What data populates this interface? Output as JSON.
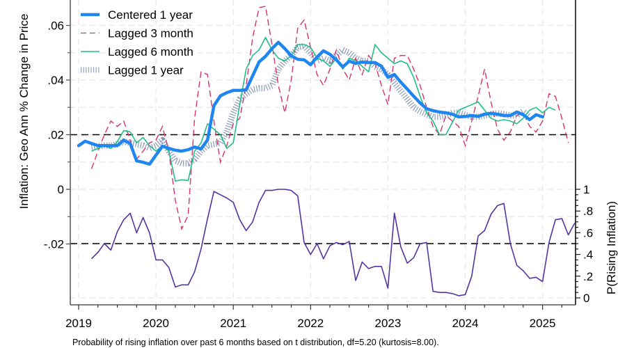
{
  "chart_data": {
    "type": "line",
    "title": "",
    "caption": "Probability of rising inflation over past 6 months based on t distribution, df=5.20 (kurtosis=8.00).",
    "xlabel": "",
    "ylabel": "Inflation: Geo Ann % Change in Price",
    "ylabel_right": "P(Rising Inflation)",
    "x_start": "2019-01",
    "x_step": "monthly",
    "xlim": [
      2018.9,
      2025.43
    ],
    "ylim": [
      -0.0423,
      0.0695
    ],
    "ylim_right": [
      0,
      1
    ],
    "right_axis_mapping": {
      "p0_at_left": -0.0398,
      "p1_at_left": 0.0
    },
    "x_ticks": [
      2019,
      2020,
      2021,
      2022,
      2023,
      2024,
      2025
    ],
    "x_tick_labels": [
      "2019",
      "2020",
      "2021",
      "2022",
      "2023",
      "2024",
      "2025"
    ],
    "y_ticks": [
      0.06,
      0.04,
      0.02,
      0,
      -0.02
    ],
    "y_tick_labels": [
      ".06",
      ".04",
      ".02",
      "0",
      "-.02"
    ],
    "y_minor_ticks": [
      0.05,
      0.03,
      0.01,
      -0.01
    ],
    "y_ticks_right": [
      1,
      0.8,
      0.6,
      0.4,
      0.2,
      0
    ],
    "y_tick_labels_right": [
      "1",
      ".8",
      ".6",
      ".4",
      ".2",
      "0"
    ],
    "reference_lines": [
      {
        "axis": "left",
        "value": 0.02,
        "style": "dashed"
      },
      {
        "axis": "right",
        "value": 0.5,
        "style": "dashed"
      }
    ],
    "grid": true,
    "legend": {
      "position": "top-left",
      "entries": [
        "Centered 1 year",
        "Lagged 3 month",
        "Lagged 6 month",
        "Lagged 1 year"
      ]
    },
    "series": [
      {
        "name": "Centered 1 year",
        "axis": "left",
        "color": "#1f86f0",
        "style": "thick",
        "start_index": 0,
        "values": [
          0.016,
          0.0176,
          0.0168,
          0.016,
          0.016,
          0.016,
          0.016,
          0.018,
          0.0168,
          0.0104,
          0.0099,
          0.0092,
          0.0125,
          0.0158,
          0.015,
          0.0143,
          0.014,
          0.0145,
          0.0155,
          0.0148,
          0.0181,
          0.0306,
          0.0342,
          0.0354,
          0.0362,
          0.0362,
          0.0364,
          0.0415,
          0.0466,
          0.0487,
          0.0515,
          0.0538,
          0.0515,
          0.0489,
          0.0476,
          0.0474,
          0.0456,
          0.0484,
          0.0507,
          0.0494,
          0.0474,
          0.0448,
          0.0469,
          0.0461,
          0.0466,
          0.0464,
          0.0464,
          0.0451,
          0.041,
          0.042,
          0.0392,
          0.0367,
          0.0341,
          0.0316,
          0.0295,
          0.0288,
          0.0283,
          0.028,
          0.0275,
          0.0265,
          0.0267,
          0.027,
          0.0267,
          0.0275,
          0.0278,
          0.0275,
          0.027,
          0.027,
          0.0283,
          0.0273,
          0.0255,
          0.0273,
          0.0265
        ]
      },
      {
        "name": "Lagged 3 month",
        "axis": "left",
        "color": "#d6336c",
        "style": "dashed",
        "start_index": 2,
        "values": [
          0.0075,
          0.014,
          0.02,
          0.025,
          0.023,
          0.025,
          0.018,
          0.011,
          0.014,
          0.017,
          0.018,
          0.023,
          0.014,
          -0.004,
          -0.0145,
          -0.0095,
          0.026,
          0.043,
          0.042,
          0.025,
          0.01,
          0.016,
          0.024,
          0.026,
          0.038,
          0.0555,
          0.0665,
          0.067,
          0.053,
          0.038,
          0.028,
          0.04,
          0.059,
          0.062,
          0.052,
          0.042,
          0.038,
          0.044,
          0.051,
          0.044,
          0.04,
          0.048,
          0.042,
          0.049,
          0.046,
          0.038,
          0.031,
          0.048,
          0.049,
          0.049,
          0.044,
          0.038,
          0.03,
          0.023,
          0.02,
          0.027,
          0.025,
          0.023,
          0.016,
          0.025,
          0.034,
          0.044,
          0.032,
          0.022,
          0.018,
          0.021,
          0.027,
          0.028,
          0.023,
          0.021,
          0.025,
          0.035,
          0.034,
          0.026,
          0.017
        ]
      },
      {
        "name": "Lagged 6 month",
        "axis": "left",
        "color": "#1fbf8a",
        "style": "solid",
        "start_index": 2,
        "values": [
          0.014,
          0.015,
          0.016,
          0.015,
          0.0175,
          0.0215,
          0.021,
          0.017,
          0.019,
          0.016,
          0.014,
          0.016,
          0.014,
          0.003,
          0.0035,
          0.0032,
          0.014,
          0.017,
          0.024,
          0.022,
          0.02,
          0.015,
          0.017,
          0.031,
          0.044,
          0.049,
          0.051,
          0.0556,
          0.051,
          0.048,
          0.047,
          0.049,
          0.053,
          0.053,
          0.052,
          0.048,
          0.047,
          0.045,
          0.048,
          0.044,
          0.048,
          0.047,
          0.045,
          0.043,
          0.053,
          0.05,
          0.048,
          0.046,
          0.047,
          0.046,
          0.041,
          0.034,
          0.028,
          0.025,
          0.02,
          0.02,
          0.0245,
          0.029,
          0.03,
          0.031,
          0.032,
          0.029,
          0.026,
          0.025,
          0.0255,
          0.025,
          0.024,
          0.026,
          0.029,
          0.03,
          0.028,
          0.03,
          0.029
        ]
      },
      {
        "name": "Lagged 1 year",
        "axis": "left",
        "color": "#7788aa",
        "style": "hatched",
        "start_index": 2,
        "values": [
          0.0155,
          0.0158,
          0.016,
          0.016,
          0.0165,
          0.0175,
          0.017,
          0.0165,
          0.016,
          0.015,
          0.016,
          0.018,
          0.014,
          0.0105,
          0.0095,
          0.0095,
          0.011,
          0.014,
          0.016,
          0.0165,
          0.017,
          0.021,
          0.028,
          0.033,
          0.035,
          0.0365,
          0.037,
          0.037,
          0.038,
          0.044,
          0.047,
          0.049,
          0.052,
          0.0525,
          0.05,
          0.047,
          0.048,
          0.047,
          0.049,
          0.051,
          0.05,
          0.048,
          0.047,
          0.047,
          0.045,
          0.044,
          0.042,
          0.039,
          0.036,
          0.033,
          0.03,
          0.0285,
          0.0275,
          0.0265,
          0.0265,
          0.027,
          0.028,
          0.028,
          0.0272,
          0.0265,
          0.0265,
          0.027,
          0.0275,
          0.0278,
          0.0275,
          0.027,
          0.027,
          0.0285,
          0.0265
        ]
      },
      {
        "name": "P(Rising Inflation)",
        "axis": "right",
        "color": "#5533a0",
        "style": "solid",
        "start_index": 2,
        "values": [
          0.36,
          0.42,
          0.5,
          0.44,
          0.61,
          0.72,
          0.78,
          0.6,
          0.74,
          0.6,
          0.35,
          0.35,
          0.28,
          0.1,
          0.12,
          0.12,
          0.24,
          0.45,
          0.73,
          0.98,
          0.95,
          0.92,
          0.88,
          0.72,
          0.62,
          0.7,
          0.88,
          0.99,
          0.99,
          1.0,
          1.0,
          0.99,
          0.94,
          0.51,
          0.4,
          0.5,
          0.36,
          0.48,
          0.51,
          0.49,
          0.52,
          0.16,
          0.33,
          0.27,
          0.29,
          0.29,
          0.09,
          0.78,
          0.47,
          0.32,
          0.37,
          0.5,
          0.51,
          0.06,
          0.05,
          0.05,
          0.04,
          0.02,
          0.03,
          0.2,
          0.57,
          0.62,
          0.77,
          0.85,
          0.87,
          0.5,
          0.3,
          0.25,
          0.18,
          0.19,
          0.15,
          0.51,
          0.72,
          0.73,
          0.58,
          0.69
        ]
      }
    ]
  }
}
